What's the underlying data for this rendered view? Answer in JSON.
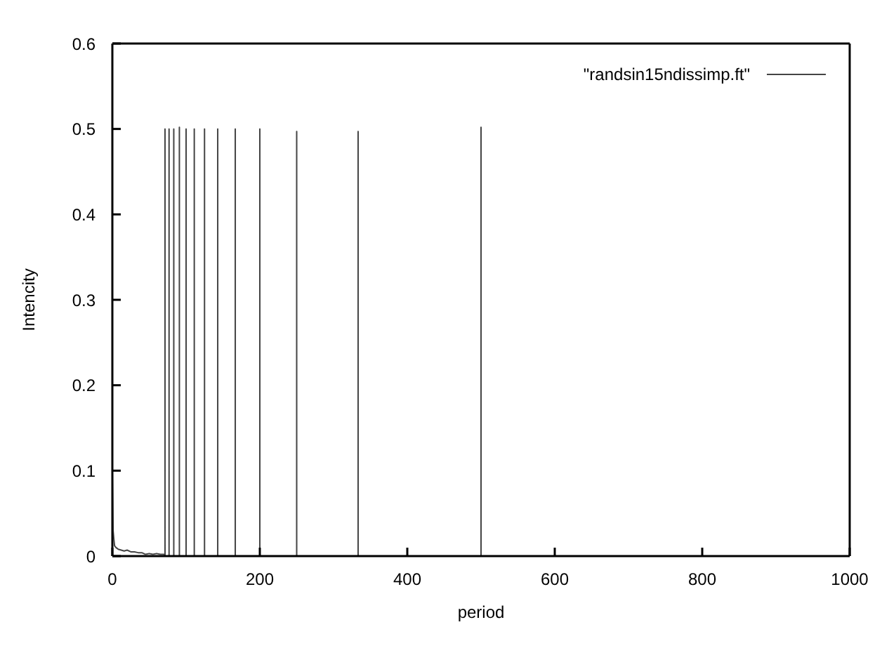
{
  "chart_data": {
    "type": "line",
    "xlabel": "period",
    "ylabel": "Intencity",
    "x": [
      0,
      0,
      1,
      2,
      3,
      5,
      8,
      12,
      16,
      20,
      25,
      30,
      35,
      40,
      45,
      50,
      55,
      60,
      65,
      70,
      71.4,
      71.4,
      71.4,
      76.9,
      76.9,
      76.9,
      83.3,
      83.3,
      83.3,
      90.9,
      90.9,
      90.9,
      100,
      100,
      100,
      111.1,
      111.1,
      111.1,
      125,
      125,
      125,
      142.9,
      142.9,
      142.9,
      166.7,
      166.7,
      166.7,
      200,
      200,
      200,
      250,
      250,
      250,
      333.3,
      333.3,
      333.3,
      500,
      500,
      500,
      1000
    ],
    "series": [
      {
        "name": "\"randsin15ndissimp.ft\"",
        "color": "#444444",
        "values": [
          0,
          0.1,
          0.03,
          0.02,
          0.012,
          0.01,
          0.008,
          0.007,
          0.006,
          0.007,
          0.005,
          0.005,
          0.004,
          0.004,
          0.002,
          0.003,
          0.002,
          0.003,
          0.002,
          0.002,
          0,
          0.5,
          0,
          0,
          0.5,
          0,
          0,
          0.5,
          0,
          0,
          0.502,
          0,
          0,
          0.5,
          0,
          0,
          0.5,
          0,
          0,
          0.5,
          0,
          0,
          0.5,
          0,
          0,
          0.5,
          0,
          0,
          0.5,
          0,
          0,
          0.497,
          0,
          0,
          0.497,
          0,
          0,
          0.502,
          0,
          0
        ]
      }
    ],
    "xlim": [
      0,
      1000
    ],
    "xticks": [
      0,
      200,
      400,
      600,
      800,
      1000
    ],
    "ylim": [
      0,
      0.6
    ],
    "yticks": [
      0,
      0.1,
      0.2,
      0.3,
      0.4,
      0.5,
      0.6
    ],
    "grid": false,
    "legend": "top right",
    "marker": "none",
    "line_style": "solid"
  }
}
